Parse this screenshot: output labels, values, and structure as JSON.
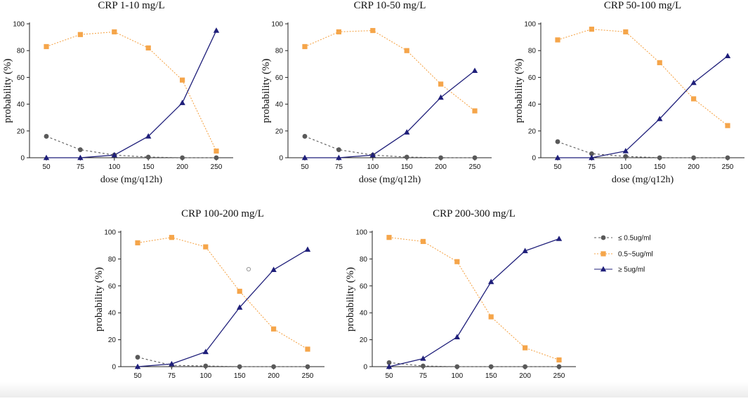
{
  "figure": {
    "legend": [
      {
        "key": "low",
        "label": "≤ 0.5ug/ml",
        "color": "#595959",
        "marker": "circle",
        "dash": "3,3"
      },
      {
        "key": "mid",
        "label": "0.5~5ug/ml",
        "color": "#F5A54A",
        "marker": "square",
        "dash": "2,2"
      },
      {
        "key": "high",
        "label": "≥ 5ug/ml",
        "color": "#1F1F7A",
        "marker": "triangle",
        "dash": ""
      }
    ]
  },
  "chart_data": [
    {
      "type": "line",
      "title": "CRP 1-10 mg/L",
      "xlabel": "dose (mg/q12h)",
      "ylabel": "probability (%)",
      "categories": [
        "50",
        "75",
        "100",
        "150",
        "200",
        "250"
      ],
      "ylim": [
        0,
        100
      ],
      "yticks": [
        0,
        20,
        40,
        60,
        80,
        100
      ],
      "series": [
        {
          "name": "≤ 0.5ug/ml",
          "values": [
            16,
            6,
            2,
            0.5,
            0,
            0
          ]
        },
        {
          "name": "0.5~5ug/ml",
          "values": [
            83,
            92,
            94,
            82,
            58,
            5
          ]
        },
        {
          "name": "≥ 5ug/ml",
          "values": [
            0,
            0,
            2,
            16,
            41,
            95
          ]
        }
      ]
    },
    {
      "type": "line",
      "title": "CRP 10-50 mg/L",
      "xlabel": "dose (mg/q12h)",
      "ylabel": "probability (%)",
      "categories": [
        "50",
        "75",
        "100",
        "150",
        "200",
        "250"
      ],
      "ylim": [
        0,
        100
      ],
      "yticks": [
        0,
        20,
        40,
        60,
        80,
        100
      ],
      "series": [
        {
          "name": "≤ 0.5ug/ml",
          "values": [
            16,
            6,
            2,
            0.5,
            0,
            0
          ]
        },
        {
          "name": "0.5~5ug/ml",
          "values": [
            83,
            94,
            95,
            80,
            55,
            35
          ]
        },
        {
          "name": "≥ 5ug/ml",
          "values": [
            0,
            0,
            2,
            19,
            45,
            65
          ]
        }
      ]
    },
    {
      "type": "line",
      "title": "CRP 50-100 mg/L",
      "xlabel": "dose (mg/q12h)",
      "ylabel": "probability (%)",
      "categories": [
        "50",
        "75",
        "100",
        "150",
        "200",
        "250"
      ],
      "ylim": [
        0,
        100
      ],
      "yticks": [
        0,
        20,
        40,
        60,
        80,
        100
      ],
      "series": [
        {
          "name": "≤ 0.5ug/ml",
          "values": [
            12,
            3,
            1,
            0,
            0,
            0
          ]
        },
        {
          "name": "0.5~5ug/ml",
          "values": [
            88,
            96,
            94,
            71,
            44,
            24
          ]
        },
        {
          "name": "≥ 5ug/ml",
          "values": [
            0,
            0,
            5,
            29,
            56,
            76
          ]
        }
      ]
    },
    {
      "type": "line",
      "title": "CRP 100-200 mg/L",
      "xlabel": "dose (mg/q12h)",
      "ylabel": "probability (%)",
      "categories": [
        "50",
        "75",
        "100",
        "150",
        "200",
        "250"
      ],
      "ylim": [
        0,
        100
      ],
      "yticks": [
        0,
        20,
        40,
        60,
        80,
        100
      ],
      "series": [
        {
          "name": "≤ 0.5ug/ml",
          "values": [
            7,
            1,
            0.5,
            0,
            0,
            0
          ]
        },
        {
          "name": "0.5~5ug/ml",
          "values": [
            92,
            96,
            89,
            56,
            28,
            13
          ]
        },
        {
          "name": "≥ 5ug/ml",
          "values": [
            0,
            2,
            11,
            44,
            72,
            87
          ]
        }
      ]
    },
    {
      "type": "line",
      "title": "CRP 200-300 mg/L",
      "xlabel": "dose (mg/q12h)",
      "ylabel": "probability (%)",
      "categories": [
        "50",
        "75",
        "100",
        "150",
        "200",
        "250"
      ],
      "ylim": [
        0,
        100
      ],
      "yticks": [
        0,
        20,
        40,
        60,
        80,
        100
      ],
      "series": [
        {
          "name": "≤ 0.5ug/ml",
          "values": [
            3,
            0.5,
            0,
            0,
            0,
            0
          ]
        },
        {
          "name": "0.5~5ug/ml",
          "values": [
            96,
            93,
            78,
            37,
            14,
            5
          ]
        },
        {
          "name": "≥ 5ug/ml",
          "values": [
            0,
            6,
            22,
            63,
            86,
            95
          ]
        }
      ]
    }
  ]
}
